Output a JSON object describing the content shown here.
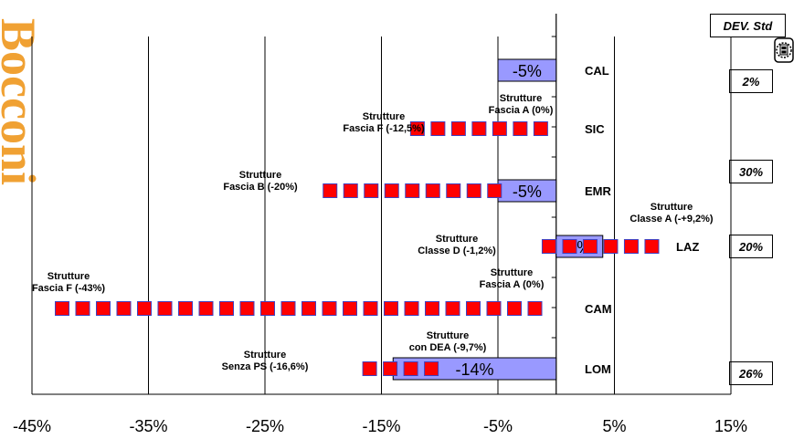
{
  "brand": {
    "text": "Bocconi",
    "color": "#f0a133"
  },
  "header": {
    "title": "DEV.  Std"
  },
  "std_values": [
    {
      "region": "CAL",
      "value": "2%"
    },
    {
      "region": "EMR",
      "value": "30%"
    },
    {
      "region": "LAZ",
      "value": "20%"
    },
    {
      "region": "LOM",
      "value": "26%"
    }
  ],
  "chart_data": {
    "type": "bar",
    "orientation": "horizontal",
    "xlim": [
      -45,
      15
    ],
    "xticks": [
      "-45%",
      "-35%",
      "-25%",
      "-15%",
      "-5%",
      "5%",
      "15%"
    ],
    "xtick_values": [
      -45,
      -35,
      -25,
      -15,
      -5,
      5,
      15
    ],
    "grid": true,
    "colors": {
      "bar_fill": "#9999ff",
      "marker": "#ff0000",
      "marker_border": "#4040c0"
    },
    "categories": [
      "CAL",
      "SIC",
      "EMR",
      "LAZ",
      "CAM",
      "LOM"
    ],
    "bars": [
      {
        "region": "CAL",
        "value": -5,
        "label": "-5%"
      },
      {
        "region": "SIC",
        "value": null,
        "label": ""
      },
      {
        "region": "EMR",
        "value": -5,
        "label": "-5%"
      },
      {
        "region": "LAZ",
        "value": 4,
        "label": "4%"
      },
      {
        "region": "CAM",
        "value": null,
        "label": ""
      },
      {
        "region": "LOM",
        "value": -14,
        "label": "-14%"
      }
    ],
    "ranges": [
      {
        "region": "SIC",
        "from": -12.5,
        "to": 0
      },
      {
        "region": "EMR",
        "from": -20,
        "to": -5
      },
      {
        "region": "LAZ",
        "from": -1.2,
        "to": 9.2
      },
      {
        "region": "CAM",
        "from": -43,
        "to": 0
      },
      {
        "region": "LOM",
        "from": -16.6,
        "to": -9.7
      }
    ],
    "annotations": [
      {
        "region": "SIC",
        "side": "left",
        "lines": [
          "Strutture",
          "Fascia F (-12,5%)"
        ]
      },
      {
        "region": "SIC",
        "side": "right",
        "lines": [
          "Strutture",
          "Fascia A (0%)"
        ]
      },
      {
        "region": "EMR",
        "side": "left",
        "lines": [
          "Strutture",
          "Fascia B (-20%)"
        ]
      },
      {
        "region": "LAZ",
        "side": "left",
        "lines": [
          "Strutture",
          "Classe D  (-1,2%)"
        ]
      },
      {
        "region": "LAZ",
        "side": "right",
        "lines": [
          "Strutture",
          "Classe A (-+9,2%)"
        ]
      },
      {
        "region": "CAM",
        "side": "left",
        "lines": [
          "Strutture",
          "Fascia F (-43%)"
        ]
      },
      {
        "region": "CAM",
        "side": "right",
        "lines": [
          "Strutture",
          "Fascia A (0%)"
        ]
      },
      {
        "region": "LOM",
        "side": "left",
        "lines": [
          "Strutture",
          "Senza PS (-16,6%)"
        ]
      },
      {
        "region": "LOM",
        "side": "right",
        "lines": [
          "Strutture",
          "con DEA (-9,7%)"
        ]
      }
    ]
  }
}
